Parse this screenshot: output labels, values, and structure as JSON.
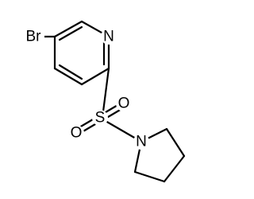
{
  "atoms": [
    {
      "label": "N"
    },
    {
      "label": "Br"
    },
    {
      "label": "S"
    },
    {
      "label": "O"
    },
    {
      "label": "O"
    },
    {
      "label": "N"
    }
  ]
}
